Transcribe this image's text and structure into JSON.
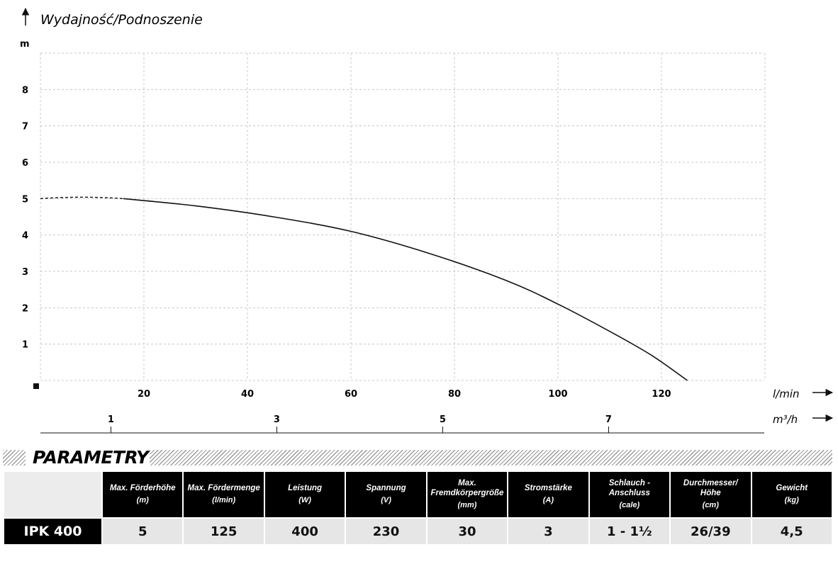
{
  "chart_data": {
    "type": "line",
    "y_title": "Wydajność/Podnoszenie",
    "y_unit": "m",
    "y_ticks": [
      1,
      2,
      3,
      4,
      5,
      6,
      7,
      8
    ],
    "ylim": [
      0,
      9
    ],
    "x_unit_primary": "l/min",
    "x_ticks_primary": [
      20,
      40,
      60,
      80,
      100,
      120
    ],
    "xlim": [
      0,
      140
    ],
    "x_unit_secondary": "m³/h",
    "x_ticks_secondary": [
      1,
      3,
      5,
      7
    ],
    "grid": true,
    "series": [
      {
        "x": [
          0,
          16,
          30,
          45,
          60,
          75,
          90,
          100,
          110,
          118,
          125
        ],
        "y": [
          5.0,
          5.0,
          4.8,
          4.5,
          4.1,
          3.5,
          2.75,
          2.1,
          1.35,
          0.7,
          0.0
        ]
      }
    ],
    "dashed_until_x": 16
  },
  "section": {
    "title": "PARAMETRY"
  },
  "table": {
    "columns": [
      {
        "name": "Max. Förderhöhe",
        "unit": "(m)"
      },
      {
        "name": "Max. Fördermenge",
        "unit": "(l/min)"
      },
      {
        "name": "Leistung",
        "unit": "(W)"
      },
      {
        "name": "Spannung",
        "unit": "(V)"
      },
      {
        "name": "Max. Fremdkörpergröße",
        "unit": "(mm)"
      },
      {
        "name": "Stromstärke",
        "unit": "(A)"
      },
      {
        "name": "Schlauch -Anschluss",
        "unit": "(cale)"
      },
      {
        "name": "Durchmesser/ Höhe",
        "unit": "(cm)"
      },
      {
        "name": "Gewicht",
        "unit": "(kg)"
      }
    ],
    "row": {
      "model": "IPK 400",
      "values": [
        "5",
        "125",
        "400",
        "230",
        "30",
        "3",
        "1 - 1½",
        "26/39",
        "4,5"
      ]
    }
  }
}
